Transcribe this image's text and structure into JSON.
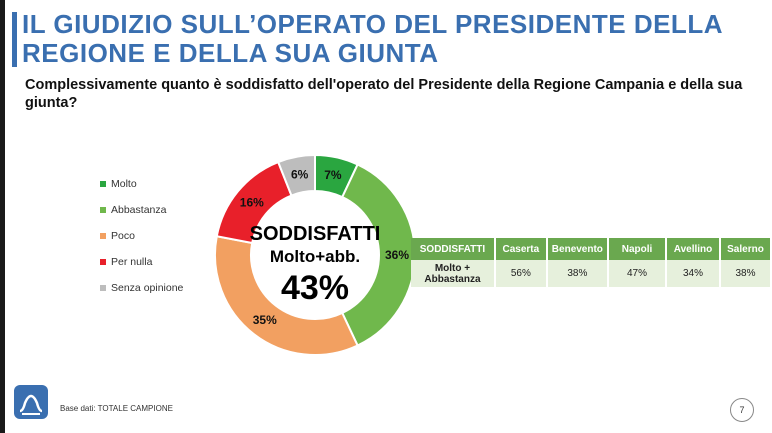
{
  "title": "IL GIUDIZIO SULL’OPERATO DEL PRESIDENTE DELLA REGIONE E DELLA SUA GIUNTA",
  "question": "Complessivamente quanto è soddisfatto dell'operato del Presidente della Regione Campania e della sua giunta?",
  "colors": {
    "title": "#3a6fb0",
    "molto": "#2aa640",
    "abbastanza": "#70b84c",
    "poco": "#f2a061",
    "per_nulla": "#e8202a",
    "senza_opinione": "#bdbdbd",
    "table_header": "#6aa84f",
    "table_row": "#e6f0dc"
  },
  "chart_data": {
    "type": "pie",
    "categories": [
      "Molto",
      "Abbastanza",
      "Poco",
      "Per nulla",
      "Senza opinione"
    ],
    "values": [
      7,
      36,
      35,
      16,
      6
    ],
    "value_labels": [
      "7%",
      "36%",
      "35%",
      "16%",
      "6%"
    ],
    "center_label_line1": "SODDISFATTI",
    "center_label_line2": "Molto+abb.",
    "center_value": "43%",
    "legend_position": "left"
  },
  "table": {
    "headers": [
      "SODDISFATTI",
      "Caserta",
      "Benevento",
      "Napoli",
      "Avellino",
      "Salerno"
    ],
    "row_label": "Molto + Abbastanza",
    "values": [
      "56%",
      "38%",
      "47%",
      "34%",
      "38%"
    ]
  },
  "footer": {
    "base": "Base dati: TOTALE CAMPIONE",
    "page": "7"
  }
}
